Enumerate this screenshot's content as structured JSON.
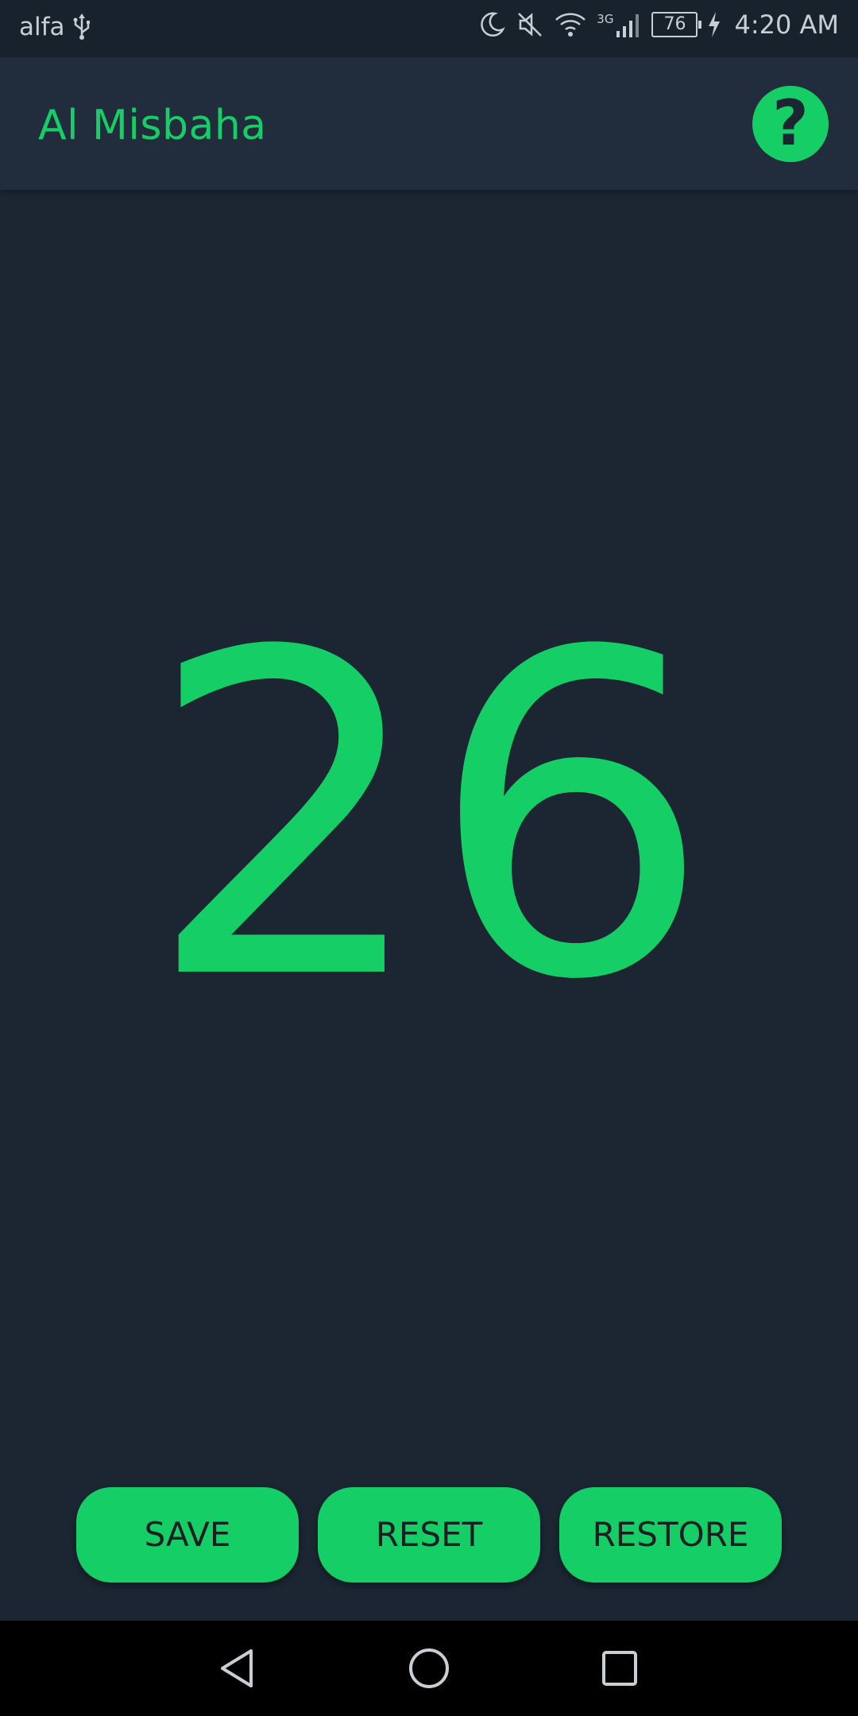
{
  "status_bar": {
    "carrier": "alfa",
    "usb_icon": "usb-icon",
    "icons": [
      "moon-icon",
      "mute-icon",
      "wifi-icon",
      "signal-icon"
    ],
    "network_type": "3G",
    "battery_level": "76",
    "time": "4:20 AM"
  },
  "app_bar": {
    "title": "Al Misbaha",
    "help_icon": "question-mark-icon",
    "help_label": "?"
  },
  "counter": {
    "value": "26"
  },
  "actions": {
    "save_label": "SAVE",
    "reset_label": "RESET",
    "restore_label": "RESTORE"
  },
  "nav_bar": {
    "icons": [
      "back-icon",
      "home-icon",
      "recents-icon"
    ]
  },
  "colors": {
    "accent": "#15cf66",
    "background": "#1b2632",
    "app_bar": "#212d3c"
  }
}
